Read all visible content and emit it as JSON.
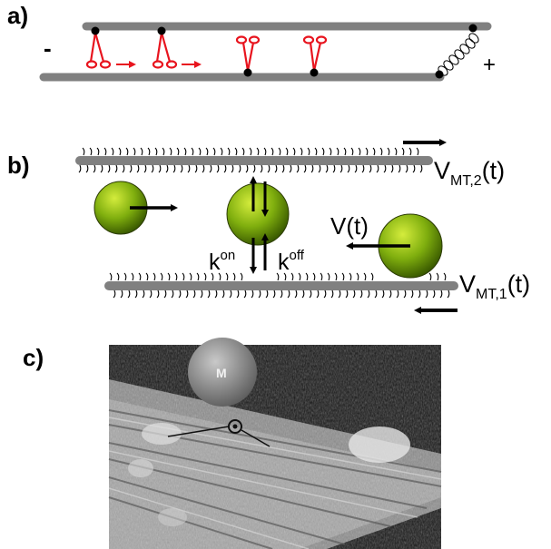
{
  "panels": {
    "a": {
      "label": "a)",
      "minus_end": "-",
      "plus_end": "+"
    },
    "b": {
      "label": "b)",
      "v_mt2": {
        "base": "V",
        "sub": "MT,2",
        "tail": "(t)"
      },
      "v_mt1": {
        "base": "V",
        "sub": "MT,1",
        "tail": "(t)"
      },
      "v_t": "V(t)",
      "k_on": {
        "base": "k",
        "sup": "on"
      },
      "k_off": {
        "base": "k",
        "sup": "off"
      }
    },
    "c": {
      "label": "c)",
      "micrograph_mark": "M"
    }
  },
  "colors": {
    "microtubule": "#808080",
    "motor": "#e8141e",
    "cargo_light": "#c8e632",
    "cargo_dark": "#3a5a00",
    "ink": "#000000"
  }
}
